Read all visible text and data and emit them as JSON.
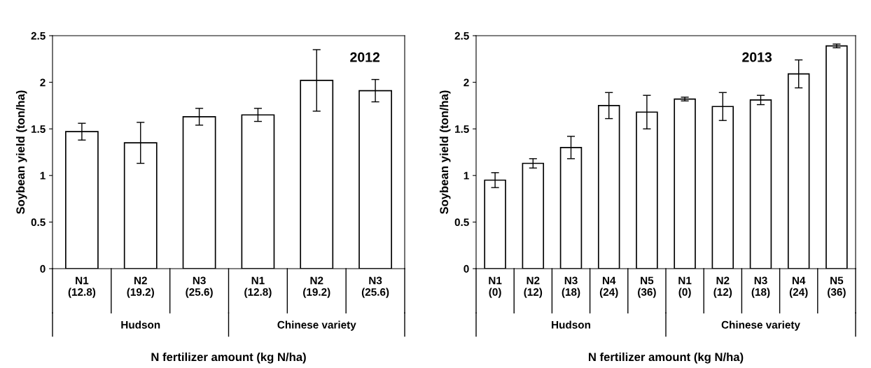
{
  "chart_data": [
    {
      "type": "bar",
      "categories": [
        "N1\n(12.8)",
        "N2\n(19.2)",
        "N3\n(25.6)",
        "N1\n(12.8)",
        "N2\n(19.2)",
        "N3\n(25.6)"
      ],
      "values": [
        1.47,
        1.35,
        1.63,
        1.65,
        2.02,
        1.91
      ],
      "errors": [
        0.09,
        0.22,
        0.09,
        0.07,
        0.33,
        0.12
      ],
      "color": "#ffffff",
      "ylim": [
        0,
        2.5
      ],
      "yticks": [
        0,
        0.5,
        1,
        1.5,
        2,
        2.5
      ],
      "ylabel": "Soybean yield (ton/ha)",
      "xlabel": "N fertilizer amount (kg N/ha)",
      "annotations": [
        "2012",
        "Hudson",
        "Chinese variety"
      ],
      "grid": false,
      "legend": false
    },
    {
      "type": "bar",
      "categories": [
        "N1\n(0)",
        "N2\n(12)",
        "N3\n(18)",
        "N4\n(24)",
        "N5\n(36)",
        "N1\n(0)",
        "N2\n(12)",
        "N3\n(18)",
        "N4\n(24)",
        "N5\n(36)"
      ],
      "values": [
        0.95,
        1.13,
        1.3,
        1.75,
        1.68,
        1.82,
        1.74,
        1.81,
        2.09,
        2.39
      ],
      "errors": [
        0.08,
        0.05,
        0.12,
        0.14,
        0.18,
        0.02,
        0.15,
        0.05,
        0.15,
        0.02
      ],
      "color": "#ffffff",
      "ylim": [
        0,
        2.5
      ],
      "yticks": [
        0,
        0.5,
        1,
        1.5,
        2,
        2.5
      ],
      "ylabel": "Soybean yield (ton/ha)",
      "xlabel": "N fertilizer amount (kg N/ha)",
      "annotations": [
        "2013",
        "Hudson",
        "Chinese variety"
      ],
      "grid": false,
      "legend": false
    }
  ]
}
